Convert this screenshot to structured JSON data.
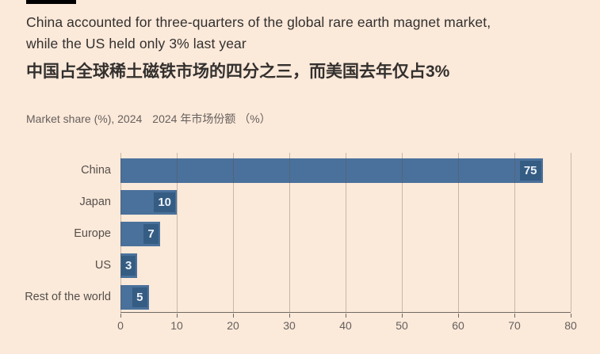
{
  "colors": {
    "background": "#FBE9DA",
    "accent_bar": "#000000",
    "bar": "#4A719B",
    "value_chip_bg": "#355C82",
    "value_chip_text": "#EDF3F9",
    "title_text": "#33302E",
    "muted_text": "#66605C",
    "label_text": "#55504B",
    "gridline": "rgba(95,75,60,0.32)",
    "axis": "#6F6862"
  },
  "header": {
    "title_line1": "China accounted for three-quarters of the global rare earth magnet market,",
    "title_line2": "while the US held only 3% last year",
    "title_zh": "中国占全球稀土磁铁市场的四分之三，而美国去年仅占3%",
    "subtitle_en": "Market share (%), 2024",
    "subtitle_zh": "2024 年市场份额 （%）"
  },
  "chart_data": {
    "type": "bar",
    "orientation": "horizontal",
    "title": "Market share (%), 2024",
    "categories": [
      "China",
      "Japan",
      "Europe",
      "US",
      "Rest of the world"
    ],
    "values": [
      75,
      10,
      7,
      3,
      5
    ],
    "xlabel": "",
    "ylabel": "",
    "xlim": [
      0,
      80
    ],
    "xticks": [
      0,
      10,
      20,
      30,
      40,
      50,
      60,
      70,
      80
    ],
    "grid": "vertical-over-bars",
    "value_labels": "inside-end",
    "legend": "none"
  }
}
